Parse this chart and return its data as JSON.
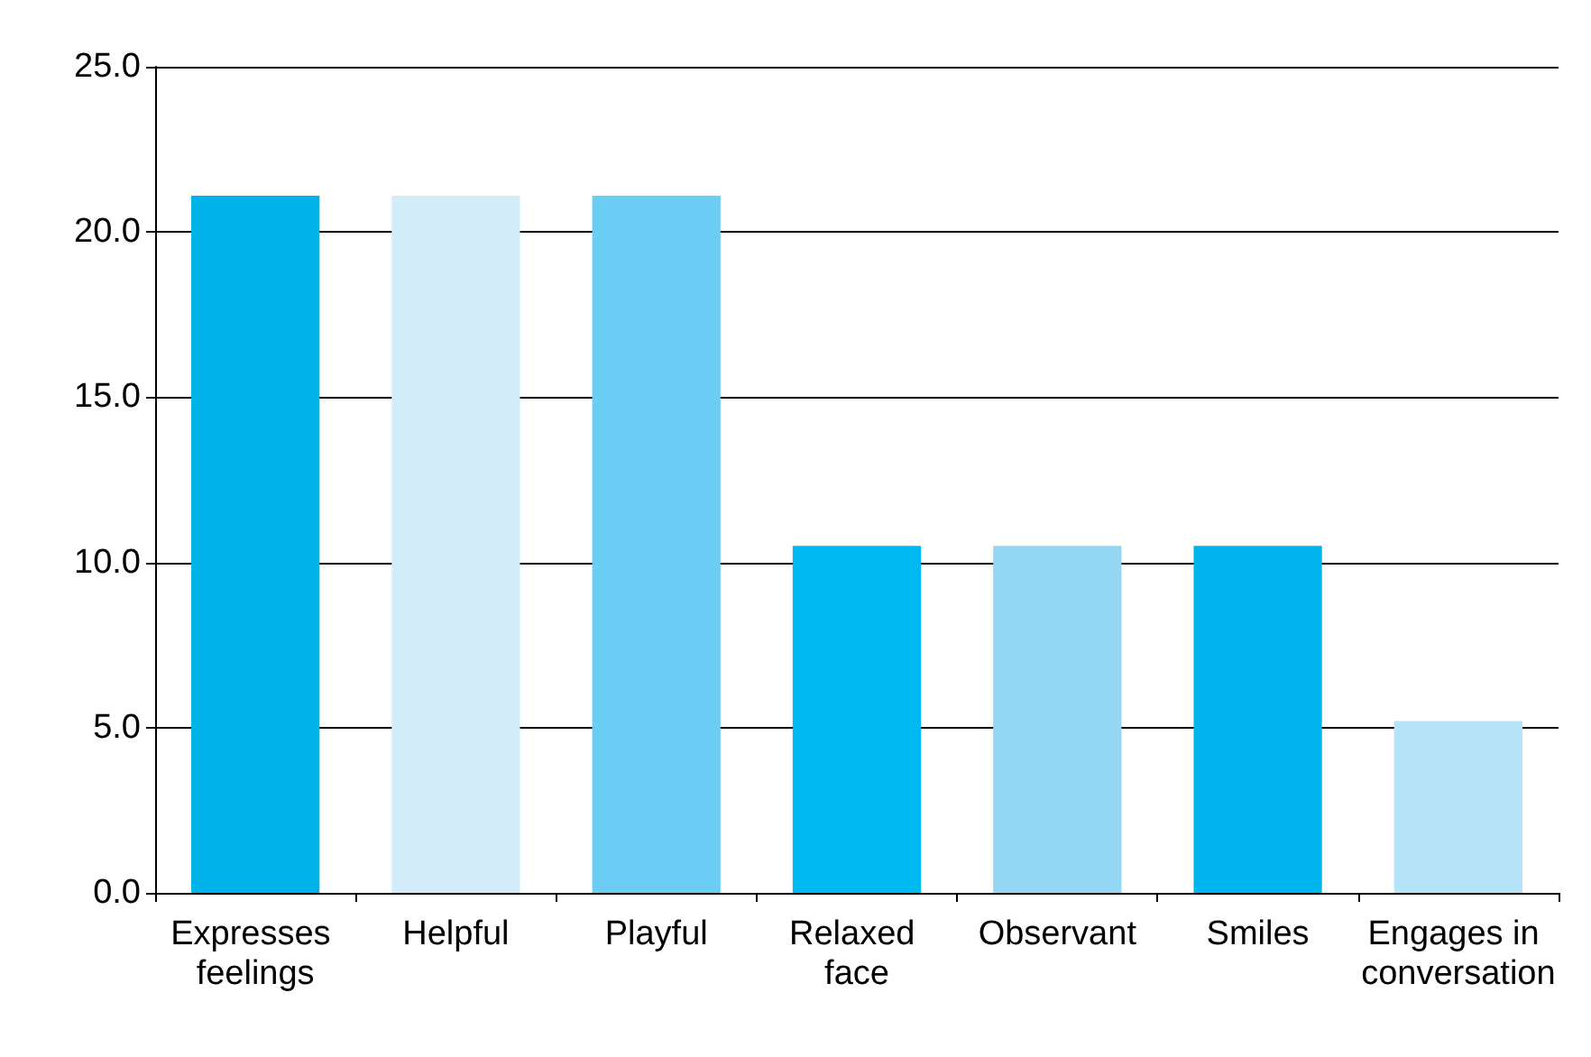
{
  "chart_data": {
    "type": "bar",
    "categories": [
      "Expresses feelings",
      "Helpful",
      "Playful",
      "Relaxed face",
      "Observant",
      "Smiles",
      "Engages in conversation"
    ],
    "values": [
      21.1,
      21.1,
      21.1,
      10.5,
      10.5,
      10.5,
      5.2
    ],
    "colors": [
      "#00b4ea",
      "#d3ecf9",
      "#6bcdf4",
      "#00b9f0",
      "#93d7f4",
      "#00b5ee",
      "#b5e4f8"
    ],
    "ylim": [
      0,
      25
    ],
    "yticks": [
      {
        "value": 0,
        "label": "0.0"
      },
      {
        "value": 5,
        "label": "5.0"
      },
      {
        "value": 10,
        "label": "10.0"
      },
      {
        "value": 15,
        "label": "15.0"
      },
      {
        "value": 20,
        "label": "20.0"
      },
      {
        "value": 25,
        "label": "25.0"
      }
    ],
    "grid": "y"
  }
}
